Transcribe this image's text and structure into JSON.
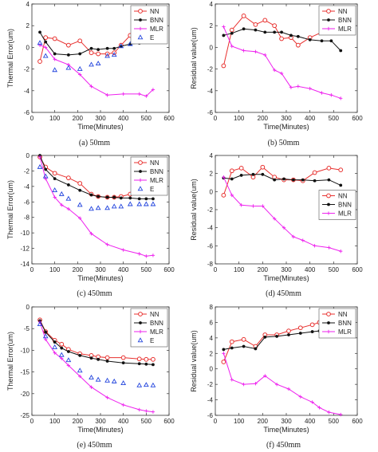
{
  "chart_data": [
    {
      "type": "line",
      "caption": "(a) 50mm",
      "xlabel": "Time(Minutes)",
      "ylabel": "Thermal Error(um)",
      "xlim": [
        0,
        600
      ],
      "ylim": [
        -6,
        4
      ],
      "xticks": [
        0,
        100,
        200,
        300,
        400,
        500,
        600
      ],
      "yticks": [
        -6,
        -4,
        -2,
        0,
        2,
        4
      ],
      "legend": "top-right",
      "series": [
        {
          "name": "NN",
          "color": "#e8312f",
          "marker": "circle",
          "x": [
            35,
            60,
            100,
            160,
            210,
            260,
            290,
            330,
            360,
            390,
            430,
            470,
            500,
            530
          ],
          "y": [
            -1.3,
            0.9,
            0.8,
            0.2,
            0.6,
            -0.5,
            -0.6,
            -0.6,
            -0.5,
            0.2,
            1.1,
            1.8,
            2.1,
            2.5
          ]
        },
        {
          "name": "BNN",
          "color": "#111111",
          "marker": "dot",
          "x": [
            35,
            60,
            100,
            160,
            210,
            260,
            290,
            330,
            360,
            390,
            430,
            470,
            500,
            530
          ],
          "y": [
            1.4,
            0.5,
            -0.6,
            -0.7,
            -0.6,
            -0.1,
            -0.2,
            -0.1,
            -0.1,
            0.1,
            0.3,
            0.4,
            0.5,
            0.6
          ]
        },
        {
          "name": "MLR",
          "color": "#ee22ee",
          "marker": "plus",
          "x": [
            35,
            60,
            100,
            160,
            210,
            260,
            330,
            400,
            470,
            500,
            530
          ],
          "y": [
            0.2,
            0.0,
            -1.1,
            -1.6,
            -2.5,
            -3.6,
            -4.4,
            -4.3,
            -4.3,
            -4.5,
            -3.9
          ]
        },
        {
          "name": "E",
          "color": "#2244dd",
          "marker": "triangle",
          "x": [
            35,
            60,
            100,
            160,
            210,
            260,
            290,
            330,
            360,
            390,
            430,
            470,
            500,
            530
          ],
          "y": [
            0.4,
            -0.8,
            -2.1,
            -1.9,
            -2.0,
            -1.6,
            -1.5,
            -0.8,
            -0.7,
            0.1,
            0.3,
            0.6,
            0.6,
            0.8
          ]
        }
      ]
    },
    {
      "type": "line",
      "caption": "(b) 50mm",
      "xlabel": "Time(Minutes)",
      "ylabel": "Residual value(um)",
      "xlim": [
        0,
        600
      ],
      "ylim": [
        -6,
        4
      ],
      "xticks": [
        0,
        100,
        200,
        300,
        400,
        500,
        600
      ],
      "yticks": [
        -6,
        -4,
        -2,
        0,
        2,
        4
      ],
      "legend": "top-right",
      "series": [
        {
          "name": "NN",
          "color": "#e8312f",
          "marker": "circle",
          "x": [
            35,
            70,
            120,
            170,
            210,
            250,
            280,
            320,
            350,
            400,
            450,
            490,
            530
          ],
          "y": [
            -1.7,
            1.6,
            2.9,
            2.1,
            2.5,
            2.0,
            0.8,
            0.9,
            0.2,
            0.9,
            1.4,
            1.9,
            1.7
          ]
        },
        {
          "name": "BNN",
          "color": "#111111",
          "marker": "dot",
          "x": [
            35,
            70,
            120,
            170,
            210,
            250,
            280,
            320,
            350,
            400,
            450,
            490,
            530
          ],
          "y": [
            1.1,
            1.3,
            1.7,
            1.6,
            1.4,
            1.4,
            1.4,
            1.1,
            1.0,
            0.7,
            0.6,
            0.6,
            -0.3
          ]
        },
        {
          "name": "MLR",
          "color": "#ee22ee",
          "marker": "plus",
          "x": [
            35,
            70,
            120,
            170,
            210,
            250,
            280,
            320,
            350,
            400,
            450,
            490,
            530
          ],
          "y": [
            1.9,
            0.1,
            -0.3,
            -0.4,
            -0.7,
            -2.1,
            -2.4,
            -3.7,
            -3.6,
            -3.8,
            -4.2,
            -4.4,
            -4.7
          ]
        }
      ]
    },
    {
      "type": "line",
      "caption": "(c) 450mm",
      "xlabel": "Time(Minutes)",
      "ylabel": "Thermal Error(um)",
      "xlim": [
        0,
        600
      ],
      "ylim": [
        -14,
        0
      ],
      "xticks": [
        0,
        100,
        200,
        300,
        400,
        500,
        600
      ],
      "yticks": [
        -14,
        -12,
        -10,
        -8,
        -6,
        -4,
        -2,
        0
      ],
      "legend": "top-right",
      "series": [
        {
          "name": "NN",
          "color": "#e8312f",
          "marker": "circle",
          "x": [
            35,
            60,
            100,
            160,
            210,
            260,
            290,
            330,
            360,
            390,
            430,
            470,
            500,
            530
          ],
          "y": [
            -0.2,
            -1.5,
            -2.3,
            -2.9,
            -3.6,
            -5.0,
            -5.3,
            -5.4,
            -5.4,
            -5.3,
            -5.0,
            -4.5,
            -4.2,
            -4.0
          ]
        },
        {
          "name": "BNN",
          "color": "#111111",
          "marker": "dot",
          "x": [
            35,
            60,
            100,
            160,
            210,
            260,
            290,
            330,
            360,
            390,
            430,
            470,
            500,
            530
          ],
          "y": [
            0.0,
            -1.8,
            -3.0,
            -3.8,
            -4.5,
            -5.1,
            -5.3,
            -5.4,
            -5.4,
            -5.5,
            -5.5,
            -5.6,
            -5.6,
            -5.6
          ]
        },
        {
          "name": "MLR",
          "color": "#ee22ee",
          "marker": "plus",
          "x": [
            35,
            60,
            100,
            130,
            160,
            210,
            260,
            330,
            400,
            470,
            500,
            530
          ],
          "y": [
            -0.2,
            -3.0,
            -5.4,
            -6.4,
            -6.9,
            -8.1,
            -10.1,
            -11.5,
            -12.2,
            -12.7,
            -13.0,
            -12.9
          ]
        },
        {
          "name": "E",
          "color": "#2244dd",
          "marker": "triangle",
          "x": [
            35,
            60,
            100,
            130,
            160,
            210,
            260,
            290,
            330,
            360,
            390,
            430,
            470,
            500,
            530
          ],
          "y": [
            -1.5,
            -2.7,
            -4.5,
            -5.0,
            -5.6,
            -6.4,
            -6.9,
            -6.8,
            -6.8,
            -6.6,
            -6.6,
            -6.3,
            -6.3,
            -6.3,
            -6.3
          ]
        }
      ]
    },
    {
      "type": "line",
      "caption": "(d) 450mm",
      "xlabel": "Time(Minutes)",
      "ylabel": "Residual value(um)",
      "xlim": [
        0,
        600
      ],
      "ylim": [
        -8,
        4
      ],
      "xticks": [
        0,
        100,
        200,
        300,
        400,
        500,
        600
      ],
      "yticks": [
        -8,
        -6,
        -4,
        -2,
        0,
        2,
        4
      ],
      "legend": "right",
      "series": [
        {
          "name": "NN",
          "color": "#e8312f",
          "marker": "circle",
          "x": [
            35,
            70,
            110,
            160,
            200,
            250,
            290,
            330,
            370,
            420,
            480,
            530
          ],
          "y": [
            -0.4,
            2.3,
            2.6,
            1.6,
            2.7,
            1.6,
            1.3,
            1.3,
            1.2,
            2.1,
            2.6,
            2.4
          ]
        },
        {
          "name": "BNN",
          "color": "#111111",
          "marker": "dot",
          "x": [
            35,
            70,
            110,
            160,
            200,
            250,
            290,
            330,
            370,
            420,
            480,
            530
          ],
          "y": [
            1.5,
            1.4,
            1.8,
            1.9,
            1.9,
            1.3,
            1.4,
            1.3,
            1.3,
            1.2,
            1.3,
            0.7
          ]
        },
        {
          "name": "MLR",
          "color": "#ee22ee",
          "marker": "plus",
          "x": [
            35,
            70,
            110,
            160,
            200,
            250,
            290,
            330,
            370,
            420,
            480,
            530
          ],
          "y": [
            1.6,
            -0.4,
            -1.5,
            -1.6,
            -1.6,
            -3.0,
            -4.0,
            -5.0,
            -5.4,
            -6.0,
            -6.2,
            -6.6
          ]
        }
      ]
    },
    {
      "type": "line",
      "caption": "(e) 450mm",
      "xlabel": "Time(Minutes)",
      "ylabel": "Thermal Error(um)",
      "xlim": [
        0,
        600
      ],
      "ylim": [
        -25,
        0
      ],
      "xticks": [
        0,
        100,
        200,
        300,
        400,
        500,
        600
      ],
      "yticks": [
        -25,
        -20,
        -15,
        -10,
        -5,
        0
      ],
      "legend": "top-right",
      "series": [
        {
          "name": "NN",
          "color": "#e8312f",
          "marker": "circle",
          "x": [
            35,
            60,
            100,
            130,
            160,
            210,
            260,
            290,
            330,
            400,
            470,
            500,
            530
          ],
          "y": [
            -3.0,
            -5.7,
            -7.7,
            -8.6,
            -9.8,
            -10.8,
            -11.2,
            -11.5,
            -11.7,
            -11.7,
            -12.0,
            -12.1,
            -12.1
          ]
        },
        {
          "name": "BNN",
          "color": "#111111",
          "marker": "dot",
          "x": [
            35,
            60,
            100,
            130,
            160,
            210,
            260,
            290,
            330,
            400,
            470,
            500,
            530
          ],
          "y": [
            -3.2,
            -5.8,
            -8.1,
            -9.5,
            -10.3,
            -11.2,
            -11.8,
            -12.1,
            -12.5,
            -12.9,
            -13.1,
            -13.2,
            -13.3
          ]
        },
        {
          "name": "MLR",
          "color": "#ee22ee",
          "marker": "plus",
          "x": [
            35,
            60,
            100,
            130,
            160,
            210,
            260,
            330,
            400,
            470,
            500,
            530
          ],
          "y": [
            -3.5,
            -7.5,
            -10.6,
            -11.9,
            -13.5,
            -16.0,
            -18.5,
            -20.9,
            -22.6,
            -23.7,
            -24.0,
            -24.2
          ]
        },
        {
          "name": "E",
          "color": "#2244dd",
          "marker": "triangle",
          "x": [
            35,
            60,
            100,
            130,
            160,
            210,
            260,
            290,
            330,
            360,
            400,
            470,
            500,
            530
          ],
          "y": [
            -4.0,
            -6.8,
            -9.3,
            -11.1,
            -12.3,
            -14.7,
            -16.3,
            -16.8,
            -17.0,
            -17.2,
            -17.6,
            -18.1,
            -18.0,
            -18.1
          ]
        }
      ]
    },
    {
      "type": "line",
      "caption": "(f) 450mm",
      "xlabel": "Time(Minutes)",
      "ylabel": "Residual value(um)",
      "xlim": [
        0,
        600
      ],
      "ylim": [
        -6,
        8
      ],
      "xticks": [
        0,
        100,
        200,
        300,
        400,
        500,
        600
      ],
      "yticks": [
        -6,
        -4,
        -2,
        0,
        2,
        4,
        6,
        8
      ],
      "legend": "top-right",
      "series": [
        {
          "name": "NN",
          "color": "#e8312f",
          "marker": "circle",
          "x": [
            35,
            70,
            120,
            170,
            210,
            260,
            310,
            360,
            410,
            440,
            480,
            530
          ],
          "y": [
            0.9,
            3.5,
            3.8,
            2.9,
            4.4,
            4.4,
            4.9,
            5.3,
            5.7,
            6.0,
            6.3,
            6.1
          ]
        },
        {
          "name": "BNN",
          "color": "#111111",
          "marker": "dot",
          "x": [
            35,
            70,
            120,
            170,
            210,
            260,
            310,
            360,
            410,
            440,
            480,
            530
          ],
          "y": [
            2.5,
            2.7,
            2.9,
            2.6,
            4.1,
            4.2,
            4.4,
            4.6,
            4.8,
            4.9,
            5.0,
            4.8
          ]
        },
        {
          "name": "MLR",
          "color": "#ee22ee",
          "marker": "plus",
          "x": [
            35,
            70,
            120,
            170,
            210,
            260,
            310,
            360,
            410,
            440,
            480,
            530
          ],
          "y": [
            2.0,
            -1.4,
            -2.0,
            -1.9,
            -0.9,
            -2.0,
            -2.6,
            -3.6,
            -4.3,
            -5.0,
            -5.6,
            -5.9
          ]
        }
      ]
    }
  ]
}
